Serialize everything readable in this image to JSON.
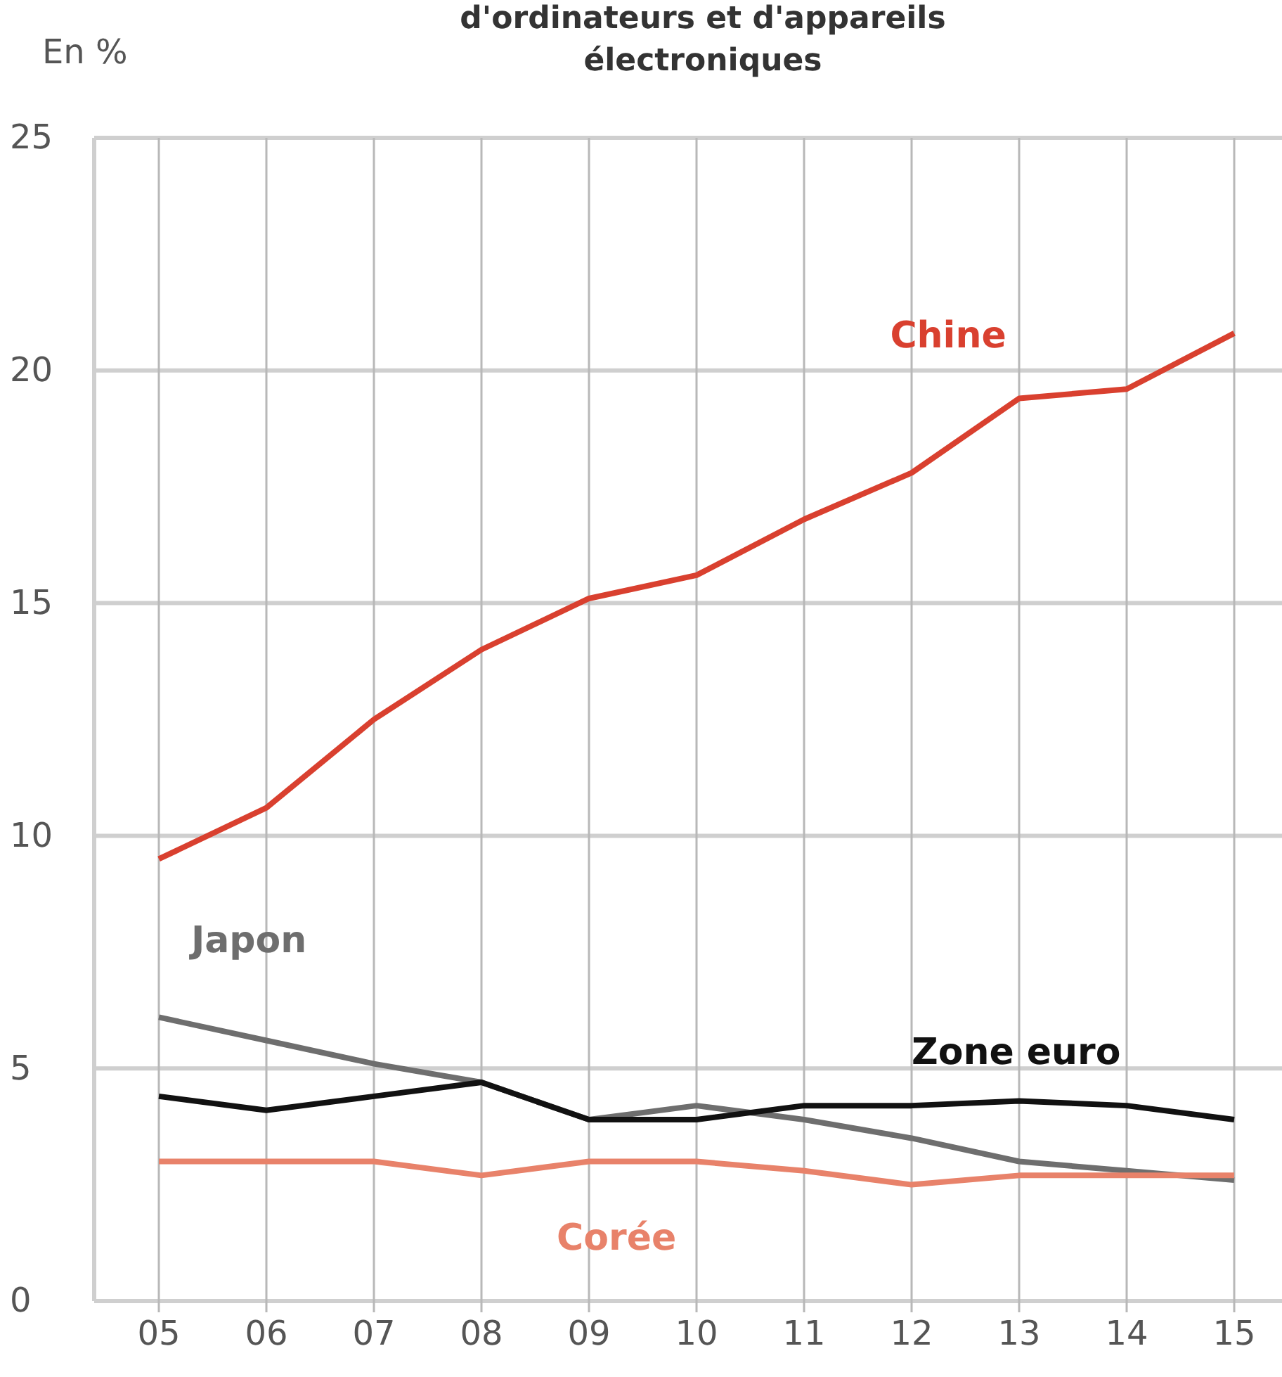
{
  "chart_data": {
    "type": "line",
    "title": "d'ordinateurs et d'appareils électroniques",
    "ylabel": "En %",
    "categories": [
      "05",
      "06",
      "07",
      "08",
      "09",
      "10",
      "11",
      "12",
      "13",
      "14",
      "15"
    ],
    "ylim": [
      0,
      25
    ],
    "yticks": [
      0,
      5,
      10,
      15,
      20,
      25
    ],
    "grid": true,
    "legend": false,
    "marker": "none",
    "line_style": "solid",
    "series": [
      {
        "name": "Chine",
        "color": "#d9402f",
        "values": [
          9.5,
          10.6,
          12.5,
          14.0,
          15.1,
          15.6,
          16.8,
          17.8,
          19.4,
          19.6,
          20.8
        ]
      },
      {
        "name": "Japon",
        "color": "#6e6e6e",
        "values": [
          6.1,
          5.6,
          5.1,
          4.7,
          3.9,
          4.2,
          3.9,
          3.5,
          3.0,
          2.8,
          2.6
        ]
      },
      {
        "name": "Zone euro",
        "color": "#111111",
        "values": [
          4.4,
          4.1,
          4.4,
          4.7,
          3.9,
          3.9,
          4.2,
          4.2,
          4.3,
          4.2,
          3.9
        ]
      },
      {
        "name": "Corée",
        "color": "#e8826a",
        "values": [
          3.0,
          3.0,
          3.0,
          2.7,
          3.0,
          3.0,
          2.8,
          2.5,
          2.7,
          2.7,
          2.7
        ]
      }
    ]
  }
}
